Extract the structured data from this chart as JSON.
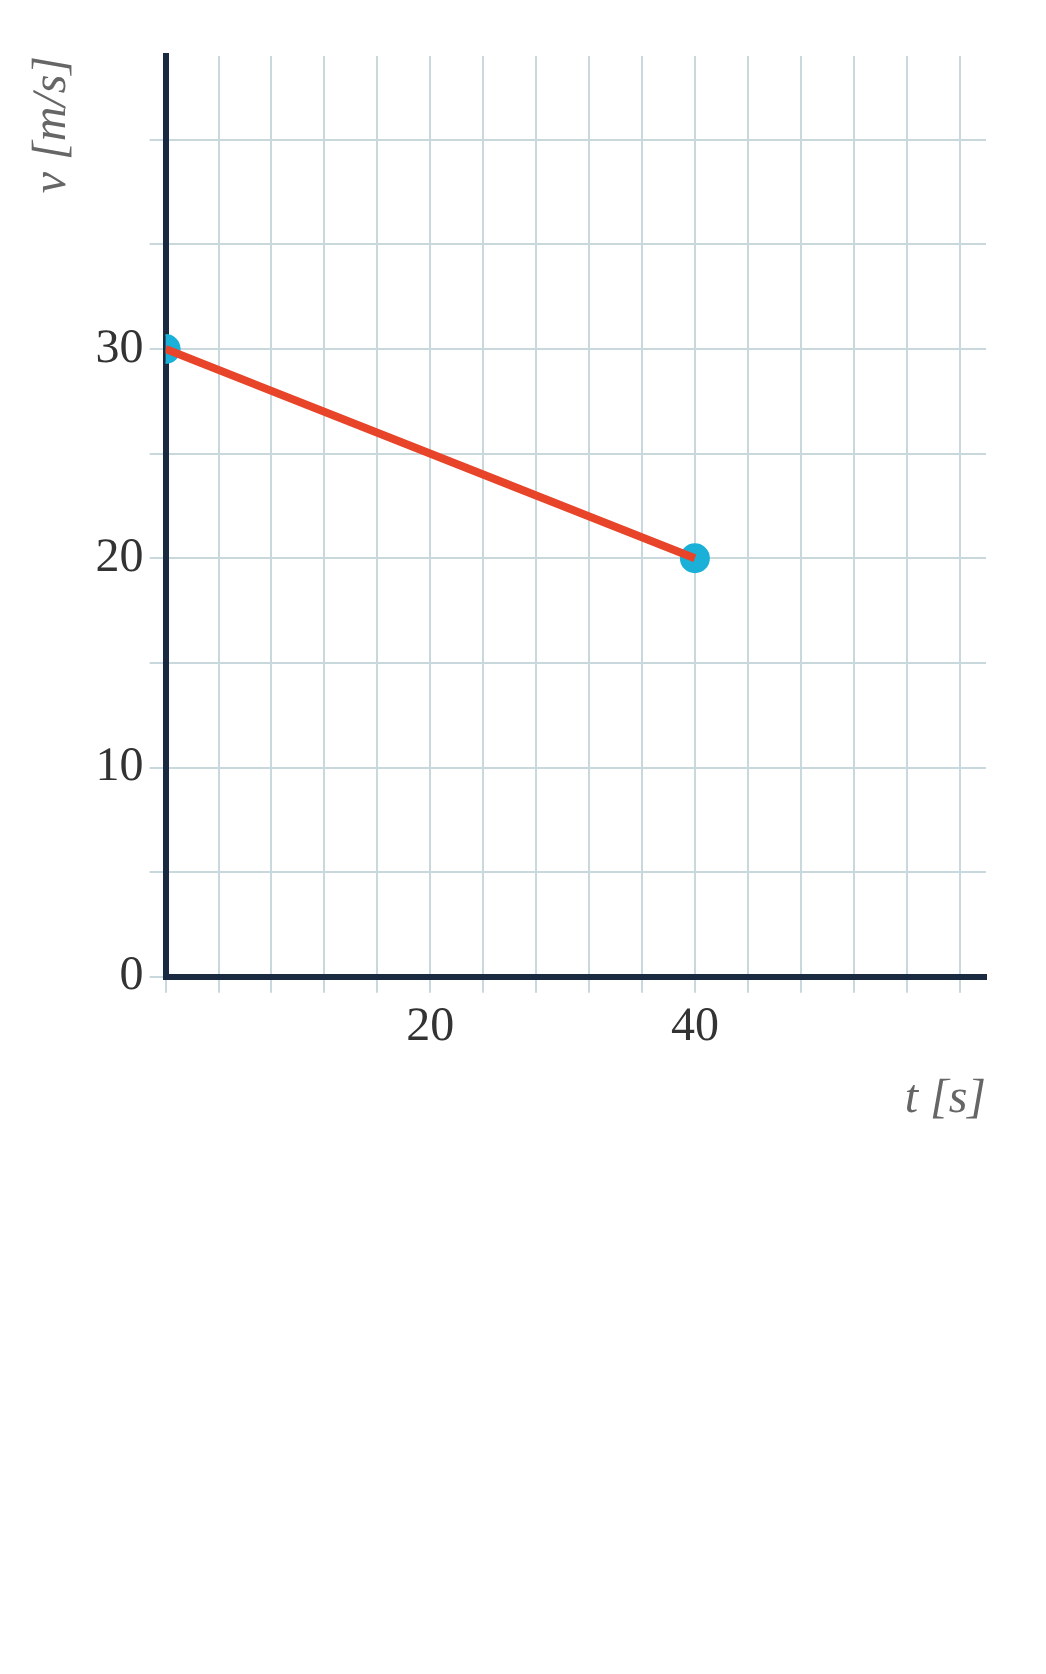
{
  "chart_data": {
    "type": "line",
    "xlabel": "t [s]",
    "ylabel": "v [m/s]",
    "x": [
      0,
      40
    ],
    "series": [
      {
        "color": "#e8442a",
        "values": [
          30,
          20
        ]
      },
      {
        "type": "scatter",
        "color": "#1ab0d8",
        "values": [
          30,
          20
        ]
      }
    ],
    "legend": false,
    "xlim": [
      0,
      62
    ],
    "xticks": [
      {
        "value": 0,
        "label": null
      },
      {
        "value": 4,
        "label": null
      },
      {
        "value": 8,
        "label": null
      },
      {
        "value": 12,
        "label": null
      },
      {
        "value": 16,
        "label": null
      },
      20,
      {
        "value": 24,
        "label": null
      },
      {
        "value": 28,
        "label": null
      },
      {
        "value": 32,
        "label": null
      },
      {
        "value": 36,
        "label": null
      },
      40,
      {
        "value": 44,
        "label": null
      },
      {
        "value": 48,
        "label": null
      },
      {
        "value": 52,
        "label": null
      },
      {
        "value": 56,
        "label": null
      },
      {
        "value": 60,
        "label": null
      }
    ],
    "ylim": [
      0,
      44
    ],
    "yticks": [
      0,
      {
        "value": 5,
        "label": null
      },
      10,
      {
        "value": 15,
        "label": null
      },
      20,
      {
        "value": 25,
        "label": null
      },
      30,
      {
        "value": 35,
        "label": null
      },
      {
        "value": 40,
        "label": null
      }
    ],
    "grid": true
  }
}
